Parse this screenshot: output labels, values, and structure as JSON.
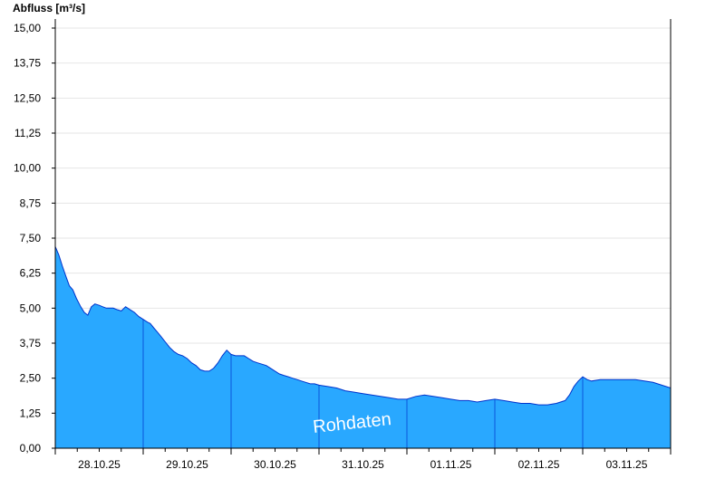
{
  "chart_data": {
    "type": "area",
    "ylabel": "Abfluss [m³/s]",
    "ylim": [
      0,
      15
    ],
    "y_ticks": [
      "0,00",
      "1,25",
      "2,50",
      "3,75",
      "5,00",
      "6,25",
      "7,50",
      "8,75",
      "10,00",
      "11,25",
      "12,50",
      "13,75",
      "15,00"
    ],
    "x_range_days": [
      0,
      7
    ],
    "x_day_labels": [
      "28.10.25",
      "29.10.25",
      "30.10.25",
      "31.10.25",
      "01.11.25",
      "02.11.25",
      "03.11.25"
    ],
    "grid": true,
    "annotation": "Rohdaten",
    "colors": {
      "fill": "#29a8ff",
      "line": "#0033cc",
      "axis": "#000000",
      "grid": "#e6e6e6"
    },
    "series": [
      {
        "x": [
          0.0,
          0.04,
          0.08,
          0.12,
          0.16,
          0.2,
          0.24,
          0.29,
          0.33,
          0.37,
          0.41,
          0.45,
          0.5,
          0.54,
          0.58,
          0.62,
          0.66,
          0.7,
          0.75,
          0.8,
          0.85,
          0.9,
          0.95,
          1.0,
          1.05,
          1.08,
          1.12,
          1.16,
          1.2,
          1.25,
          1.3,
          1.35,
          1.4,
          1.45,
          1.5,
          1.55,
          1.6,
          1.65,
          1.7,
          1.75,
          1.8,
          1.85,
          1.9,
          1.95,
          2.0,
          2.05,
          2.1,
          2.15,
          2.2,
          2.25,
          2.3,
          2.35,
          2.4,
          2.45,
          2.5,
          2.55,
          2.6,
          2.65,
          2.7,
          2.75,
          2.8,
          2.85,
          2.9,
          2.95,
          3.0,
          3.1,
          3.2,
          3.3,
          3.4,
          3.5,
          3.6,
          3.7,
          3.8,
          3.9,
          4.0,
          4.1,
          4.2,
          4.3,
          4.4,
          4.5,
          4.6,
          4.7,
          4.8,
          4.9,
          5.0,
          5.1,
          5.2,
          5.3,
          5.4,
          5.5,
          5.6,
          5.7,
          5.8,
          5.85,
          5.9,
          5.95,
          6.0,
          6.05,
          6.1,
          6.2,
          6.3,
          6.4,
          6.5,
          6.6,
          6.7,
          6.8,
          6.9,
          7.0
        ],
        "y": [
          7.2,
          6.9,
          6.5,
          6.15,
          5.8,
          5.65,
          5.35,
          5.05,
          4.85,
          4.75,
          5.05,
          5.15,
          5.1,
          5.05,
          5.0,
          5.0,
          5.0,
          4.95,
          4.9,
          5.05,
          4.95,
          4.85,
          4.7,
          4.6,
          4.5,
          4.45,
          4.3,
          4.15,
          4.0,
          3.8,
          3.6,
          3.45,
          3.35,
          3.3,
          3.2,
          3.05,
          2.95,
          2.8,
          2.75,
          2.75,
          2.85,
          3.05,
          3.3,
          3.5,
          3.35,
          3.3,
          3.3,
          3.3,
          3.2,
          3.1,
          3.05,
          3.0,
          2.95,
          2.85,
          2.75,
          2.65,
          2.6,
          2.55,
          2.5,
          2.45,
          2.4,
          2.35,
          2.3,
          2.3,
          2.25,
          2.2,
          2.15,
          2.05,
          2.0,
          1.95,
          1.9,
          1.85,
          1.8,
          1.75,
          1.75,
          1.85,
          1.9,
          1.85,
          1.8,
          1.75,
          1.7,
          1.7,
          1.65,
          1.7,
          1.75,
          1.7,
          1.65,
          1.6,
          1.6,
          1.55,
          1.55,
          1.6,
          1.7,
          1.9,
          2.2,
          2.4,
          2.55,
          2.45,
          2.4,
          2.45,
          2.45,
          2.45,
          2.45,
          2.45,
          2.4,
          2.35,
          2.25,
          2.15
        ]
      }
    ]
  }
}
